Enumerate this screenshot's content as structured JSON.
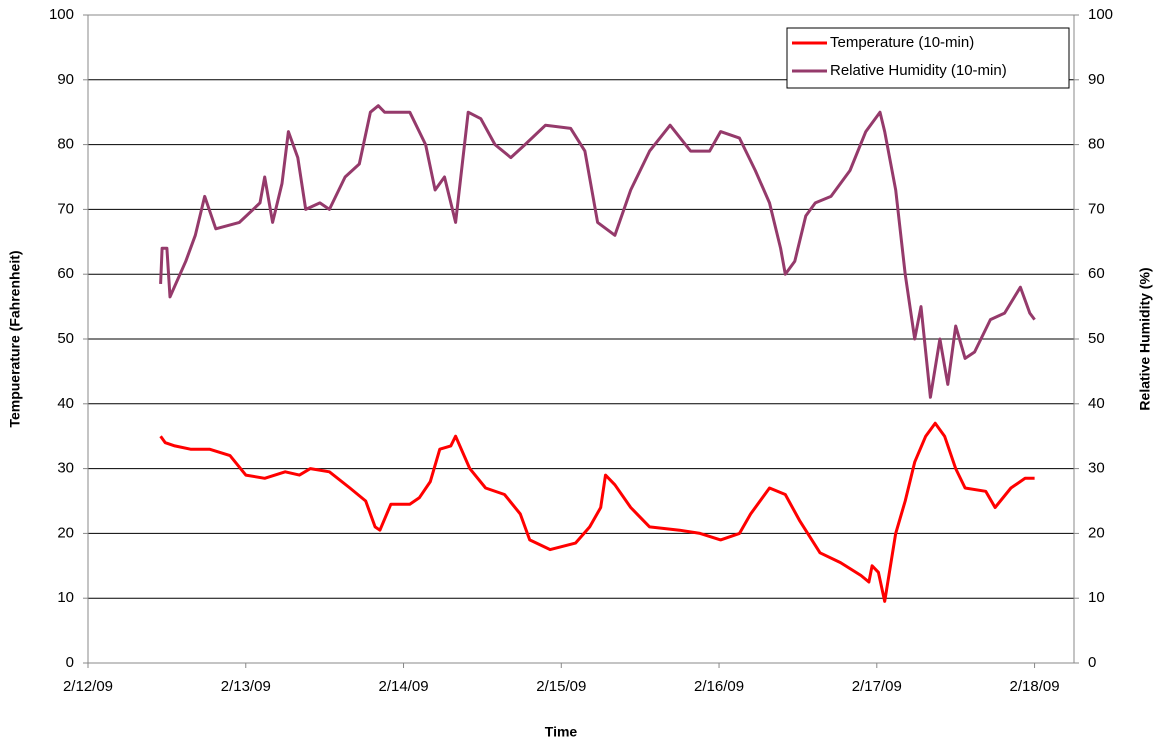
{
  "chart_data": {
    "type": "line",
    "x_label": "Time",
    "y_label": "Tempuerature (Fahrenheit)",
    "y2_label": "Relative Humidity (%)",
    "xlim": [
      0,
      6.25
    ],
    "xticks": [
      {
        "value": 0,
        "label": "2/12/09"
      },
      {
        "value": 1,
        "label": "2/13/09"
      },
      {
        "value": 2,
        "label": "2/14/09"
      },
      {
        "value": 3,
        "label": "2/15/09"
      },
      {
        "value": 4,
        "label": "2/16/09"
      },
      {
        "value": 5,
        "label": "2/17/09"
      },
      {
        "value": 6,
        "label": "2/18/09"
      }
    ],
    "ylim": [
      0,
      100
    ],
    "yticks": [
      0,
      10,
      20,
      30,
      40,
      50,
      60,
      70,
      80,
      90,
      100
    ],
    "y2lim": [
      0,
      100
    ],
    "y2ticks": [
      0,
      10,
      20,
      30,
      40,
      50,
      60,
      70,
      80,
      90,
      100
    ],
    "grid": true,
    "legend": "top-right",
    "series": [
      {
        "name": "Temperature (10-min)",
        "color": "#ff0000",
        "x": [
          0.46,
          0.49,
          0.55,
          0.65,
          0.77,
          0.9,
          1.0,
          1.12,
          1.25,
          1.34,
          1.41,
          1.53,
          1.66,
          1.76,
          1.82,
          1.85,
          1.92,
          2.04,
          2.1,
          2.17,
          2.23,
          2.3,
          2.33,
          2.42,
          2.52,
          2.64,
          2.74,
          2.8,
          2.93,
          3.09,
          3.18,
          3.25,
          3.28,
          3.34,
          3.44,
          3.56,
          3.75,
          3.88,
          4.01,
          4.13,
          4.2,
          4.32,
          4.42,
          4.51,
          4.64,
          4.77,
          4.9,
          4.95,
          4.97,
          5.01,
          5.05,
          5.12,
          5.18,
          5.24,
          5.31,
          5.37,
          5.43,
          5.5,
          5.56,
          5.69,
          5.75,
          5.85,
          5.94,
          6.0
        ],
        "values": [
          35,
          34,
          33.5,
          33,
          33,
          32,
          29,
          28.5,
          29.5,
          29,
          30,
          29.5,
          27,
          25,
          21,
          20.5,
          24.5,
          24.5,
          25.5,
          28,
          33,
          33.5,
          35,
          30,
          27,
          26,
          23,
          19,
          17.5,
          18.5,
          21,
          24,
          29,
          27.5,
          24,
          21,
          20.5,
          20,
          19,
          20,
          23,
          27,
          26,
          22,
          17,
          15.5,
          13.5,
          12.5,
          15,
          14,
          9.5,
          20,
          25,
          31,
          35,
          37,
          35,
          30,
          27,
          26.5,
          24,
          27,
          28.5,
          28.5
        ]
      },
      {
        "name": "Relative Humidity (10-min)",
        "color": "#953a6b",
        "axis": "y2",
        "x": [
          0.46,
          0.47,
          0.5,
          0.52,
          0.62,
          0.68,
          0.74,
          0.81,
          0.96,
          1.09,
          1.12,
          1.17,
          1.23,
          1.27,
          1.33,
          1.38,
          1.47,
          1.53,
          1.63,
          1.72,
          1.79,
          1.84,
          1.88,
          1.98,
          2.04,
          2.14,
          2.2,
          2.26,
          2.33,
          2.41,
          2.49,
          2.58,
          2.68,
          2.77,
          2.9,
          3.06,
          3.15,
          3.23,
          3.34,
          3.44,
          3.56,
          3.69,
          3.82,
          3.94,
          4.01,
          4.13,
          4.23,
          4.32,
          4.39,
          4.42,
          4.48,
          4.55,
          4.61,
          4.71,
          4.83,
          4.93,
          5.02,
          5.05,
          5.12,
          5.18,
          5.24,
          5.28,
          5.34,
          5.4,
          5.45,
          5.5,
          5.56,
          5.62,
          5.72,
          5.81,
          5.91,
          5.97,
          6.0
        ],
        "values": [
          58.5,
          64,
          64,
          56.5,
          62,
          66,
          72,
          67,
          68,
          71,
          75,
          68,
          74,
          82,
          78,
          70,
          71,
          70,
          75,
          77,
          85,
          86,
          85,
          85,
          85,
          80,
          73,
          75,
          68,
          85,
          84,
          80,
          78,
          80,
          83,
          82.5,
          79,
          68,
          66,
          73,
          79,
          83,
          79,
          79,
          82,
          81,
          76,
          71,
          64,
          60,
          62,
          69,
          71,
          72,
          76,
          82,
          85,
          82,
          73,
          60,
          50,
          55,
          41,
          50,
          43,
          52,
          47,
          48,
          53,
          54,
          58,
          54,
          53
        ]
      }
    ]
  }
}
